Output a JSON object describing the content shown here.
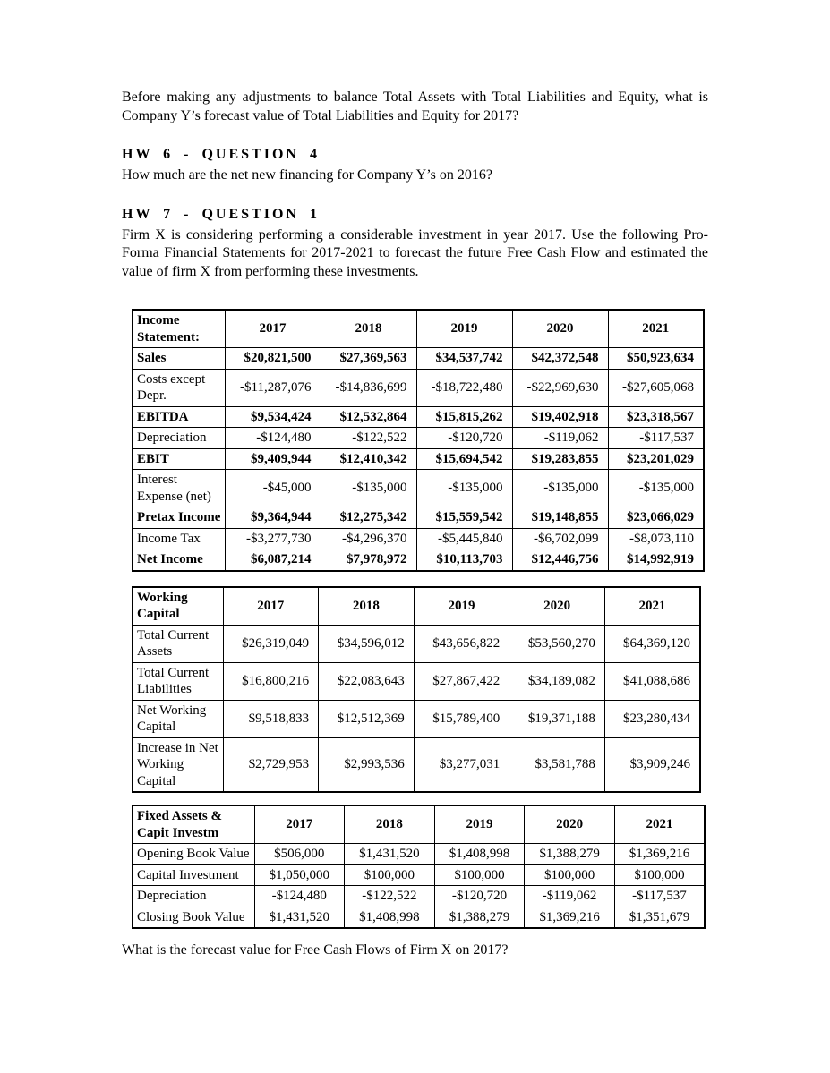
{
  "page": {
    "intro_paragraph": "Before making any adjustments to balance Total Assets with Total Liabilities and Equity, what is Company Y’s forecast value of Total Liabilities and Equity for 2017?",
    "hw6": {
      "heading": "HW 6 - QUESTION 4",
      "question": "How much are the net new financing for Company Y’s on 2016?"
    },
    "hw7": {
      "heading": "HW 7 - QUESTION 1",
      "paragraph": "Firm X is considering performing a considerable investment in year 2017. Use the following Pro-Forma Financial Statements for 2017-2021 to forecast the future Free Cash Flow and estimated the value of firm X from performing these investments."
    },
    "closing_question": "What is the forecast value for Free Cash Flows of Firm X on 2017?"
  },
  "tables": [
    {
      "title": "Income Statement:",
      "columns": [
        "2017",
        "2018",
        "2019",
        "2020",
        "2021"
      ],
      "value_align": "right",
      "rows": [
        {
          "label": "Sales",
          "bold": true,
          "values": [
            "$20,821,500",
            "$27,369,563",
            "$34,537,742",
            "$42,372,548",
            "$50,923,634"
          ]
        },
        {
          "label": "Costs except Depr.",
          "bold": false,
          "values": [
            "-$11,287,076",
            "-$14,836,699",
            "-$18,722,480",
            "-$22,969,630",
            "-$27,605,068"
          ]
        },
        {
          "label": "EBITDA",
          "bold": true,
          "values": [
            "$9,534,424",
            "$12,532,864",
            "$15,815,262",
            "$19,402,918",
            "$23,318,567"
          ]
        },
        {
          "label": "Depreciation",
          "bold": false,
          "values": [
            "-$124,480",
            "-$122,522",
            "-$120,720",
            "-$119,062",
            "-$117,537"
          ]
        },
        {
          "label": "EBIT",
          "bold": true,
          "values": [
            "$9,409,944",
            "$12,410,342",
            "$15,694,542",
            "$19,283,855",
            "$23,201,029"
          ]
        },
        {
          "label": "Interest Expense (net)",
          "bold": false,
          "values": [
            "-$45,000",
            "-$135,000",
            "-$135,000",
            "-$135,000",
            "-$135,000"
          ]
        },
        {
          "label": "Pretax Income",
          "bold": true,
          "values": [
            "$9,364,944",
            "$12,275,342",
            "$15,559,542",
            "$19,148,855",
            "$23,066,029"
          ]
        },
        {
          "label": "Income Tax",
          "bold": false,
          "values": [
            "-$3,277,730",
            "-$4,296,370",
            "-$5,445,840",
            "-$6,702,099",
            "-$8,073,110"
          ]
        },
        {
          "label": "Net Income",
          "bold": true,
          "values": [
            "$6,087,214",
            "$7,978,972",
            "$10,113,703",
            "$12,446,756",
            "$14,992,919"
          ]
        }
      ]
    },
    {
      "title": "Working Capital",
      "columns": [
        "2017",
        "2018",
        "2019",
        "2020",
        "2021"
      ],
      "value_align": "right",
      "rows": [
        {
          "label": "Total Current Assets",
          "bold": false,
          "values": [
            "$26,319,049",
            "$34,596,012",
            "$43,656,822",
            "$53,560,270",
            "$64,369,120"
          ]
        },
        {
          "label": "Total Current Liabilities",
          "bold": false,
          "values": [
            "$16,800,216",
            "$22,083,643",
            "$27,867,422",
            "$34,189,082",
            "$41,088,686"
          ]
        },
        {
          "label": "Net Working Capital",
          "bold": false,
          "values": [
            "$9,518,833",
            "$12,512,369",
            "$15,789,400",
            "$19,371,188",
            "$23,280,434"
          ]
        },
        {
          "label": "Increase in Net Working Capital",
          "bold": false,
          "values": [
            "$2,729,953",
            "$2,993,536",
            "$3,277,031",
            "$3,581,788",
            "$3,909,246"
          ]
        }
      ]
    },
    {
      "title": "Fixed Assets & Capit Investm",
      "columns": [
        "2017",
        "2018",
        "2019",
        "2020",
        "2021"
      ],
      "value_align": "center",
      "rows": [
        {
          "label": "Opening Book Value",
          "bold": false,
          "values": [
            "$506,000",
            "$1,431,520",
            "$1,408,998",
            "$1,388,279",
            "$1,369,216"
          ]
        },
        {
          "label": "Capital Investment",
          "bold": false,
          "values": [
            "$1,050,000",
            "$100,000",
            "$100,000",
            "$100,000",
            "$100,000"
          ]
        },
        {
          "label": "Depreciation",
          "bold": false,
          "values": [
            "-$124,480",
            "-$122,522",
            "-$120,720",
            "-$119,062",
            "-$117,537"
          ]
        },
        {
          "label": "Closing Book Value",
          "bold": false,
          "values": [
            "$1,431,520",
            "$1,408,998",
            "$1,388,279",
            "$1,369,216",
            "$1,351,679"
          ]
        }
      ]
    }
  ]
}
